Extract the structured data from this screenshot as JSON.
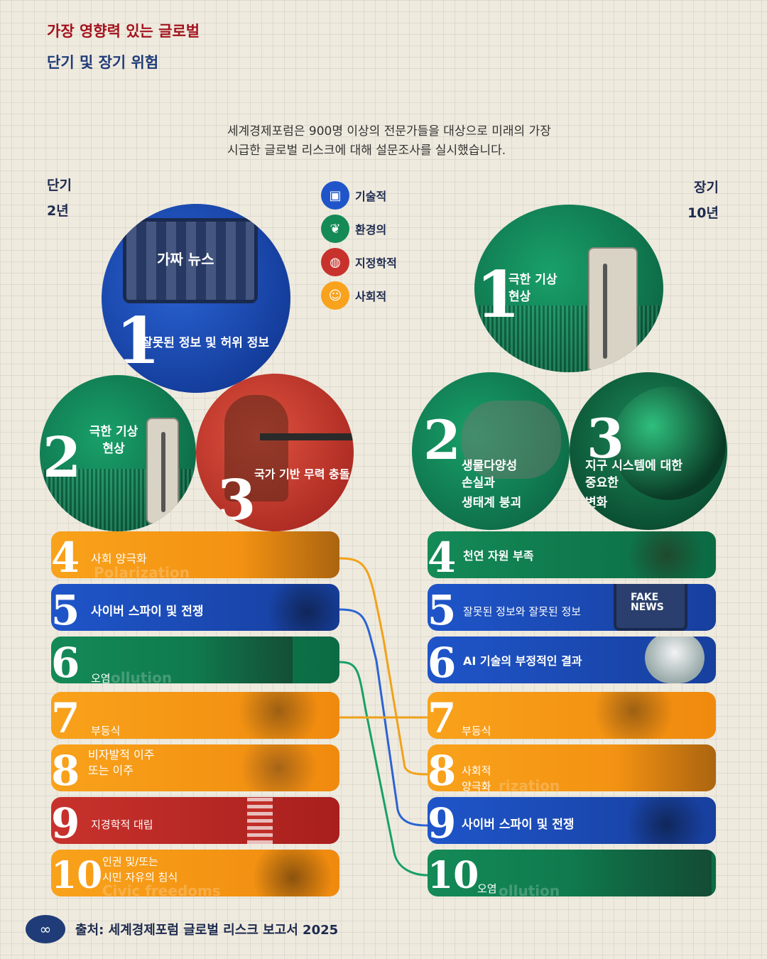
{
  "header": {
    "title_line1": "가장 영향력 있는 글로벌",
    "title_line2": "단기 및 장기 위험",
    "intro_line1": "세계경제포럼은 900명 이상의 전문가들을 대상으로 미래의 가장",
    "intro_line2": "시급한 글로벌 리스크에 대해 설문조사를 실시했습니다."
  },
  "short_term": {
    "label": "단기",
    "period": "2년"
  },
  "long_term": {
    "label": "장기",
    "period": "10년"
  },
  "legend": [
    {
      "label": "기술적",
      "color": "#1f55c9",
      "icon": "chip-icon"
    },
    {
      "label": "환경의",
      "color": "#148a57",
      "icon": "leaf-icon"
    },
    {
      "label": "지정학적",
      "color": "#c8322c",
      "icon": "globe-icon"
    },
    {
      "label": "사회적",
      "color": "#f9a21b",
      "icon": "people-icon"
    }
  ],
  "short_circles": [
    {
      "rank": "1",
      "text": "잘못된 정보 및 허위 정보",
      "overlay": "가짜 뉴스",
      "category": "기술적"
    },
    {
      "rank": "2",
      "text": "극한 기상 현상",
      "category": "환경의"
    },
    {
      "rank": "3",
      "text": "국가 기반 무력 충돌",
      "category": "지정학적"
    }
  ],
  "long_circles": [
    {
      "rank": "1",
      "text": "극한 기상 현상",
      "category": "환경의"
    },
    {
      "rank": "2",
      "line1": "생물다양성",
      "line2": "손실과",
      "line3": "생태계 붕괴",
      "category": "환경의"
    },
    {
      "rank": "3",
      "line1": "지구 시스템에 대한",
      "line2": "중요한",
      "line3": "변화",
      "category": "환경의"
    }
  ],
  "short_bars": [
    {
      "rank": "4",
      "label": "사회 양극화",
      "ghost": "Polarization",
      "category": "사회적"
    },
    {
      "rank": "5",
      "label": "사이버 스파이 및 전쟁",
      "category": "기술적"
    },
    {
      "rank": "6",
      "label": "오염",
      "ghost": "ollution",
      "category": "환경의"
    },
    {
      "rank": "7",
      "label": "부등식",
      "category": "사회적"
    },
    {
      "rank": "8",
      "line1": "비자발적 이주",
      "line2": "또는 이주",
      "category": "사회적"
    },
    {
      "rank": "9",
      "label": "지경학적 대립",
      "category": "지정학적"
    },
    {
      "rank": "10",
      "line1": "인권 및/또는",
      "line2": "시민 자유의 침식",
      "ghost": "Civic freedoms",
      "category": "사회적"
    }
  ],
  "long_bars": [
    {
      "rank": "4",
      "label": "천연 자원 부족",
      "category": "환경의"
    },
    {
      "rank": "5",
      "label": "잘못된 정보와 잘못된 정보",
      "overlay": "FAKE NEWS",
      "category": "기술적"
    },
    {
      "rank": "6",
      "label": "AI 기술의 부정적인 결과",
      "category": "기술적"
    },
    {
      "rank": "7",
      "label": "부등식",
      "category": "사회적"
    },
    {
      "rank": "8",
      "line1": "사회적",
      "line2": "양극화",
      "ghost": "rization",
      "category": "사회적"
    },
    {
      "rank": "9",
      "label": "사이버 스파이 및 전쟁",
      "category": "기술적"
    },
    {
      "rank": "10",
      "label": "오염",
      "ghost": "ollution",
      "category": "환경의"
    }
  ],
  "footer": {
    "source": "출처: 세계경제포럼 글로벌 리스크 보고서 2025"
  }
}
